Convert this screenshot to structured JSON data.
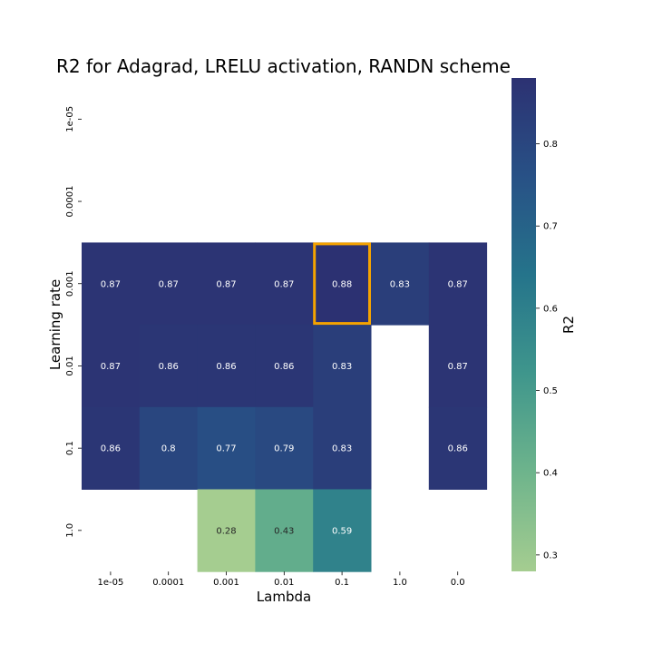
{
  "chart_data": {
    "type": "heatmap",
    "title": "R2 for Adagrad, LRELU activation, RANDN scheme",
    "xlabel": "Lambda",
    "ylabel": "Learning rate",
    "x_categories": [
      "1e-05",
      "0.0001",
      "0.001",
      "0.01",
      "0.1",
      "1.0",
      "0.0"
    ],
    "y_categories": [
      "1e-05",
      "0.0001",
      "0.001",
      "0.01",
      "0.1",
      "1.0"
    ],
    "values": [
      [
        null,
        null,
        null,
        null,
        null,
        null,
        null
      ],
      [
        null,
        null,
        null,
        null,
        null,
        null,
        null
      ],
      [
        0.87,
        0.87,
        0.87,
        0.87,
        0.88,
        0.83,
        0.87
      ],
      [
        0.87,
        0.86,
        0.86,
        0.86,
        0.83,
        null,
        0.87
      ],
      [
        0.86,
        0.8,
        0.77,
        0.79,
        0.83,
        null,
        0.86
      ],
      [
        null,
        null,
        0.28,
        0.43,
        0.59,
        null,
        null
      ]
    ],
    "highlight_cell": {
      "row": "0.001",
      "col": "0.1"
    },
    "highlight_color": "#f5a300",
    "colorbar": {
      "label": "R2",
      "range": [
        0.28,
        0.88
      ],
      "ticks": [
        0.3,
        0.4,
        0.5,
        0.6,
        0.7,
        0.8
      ],
      "colormap": "crest",
      "color_low": "#a5cd90",
      "color_high": "#2c3172"
    },
    "grid": false
  }
}
